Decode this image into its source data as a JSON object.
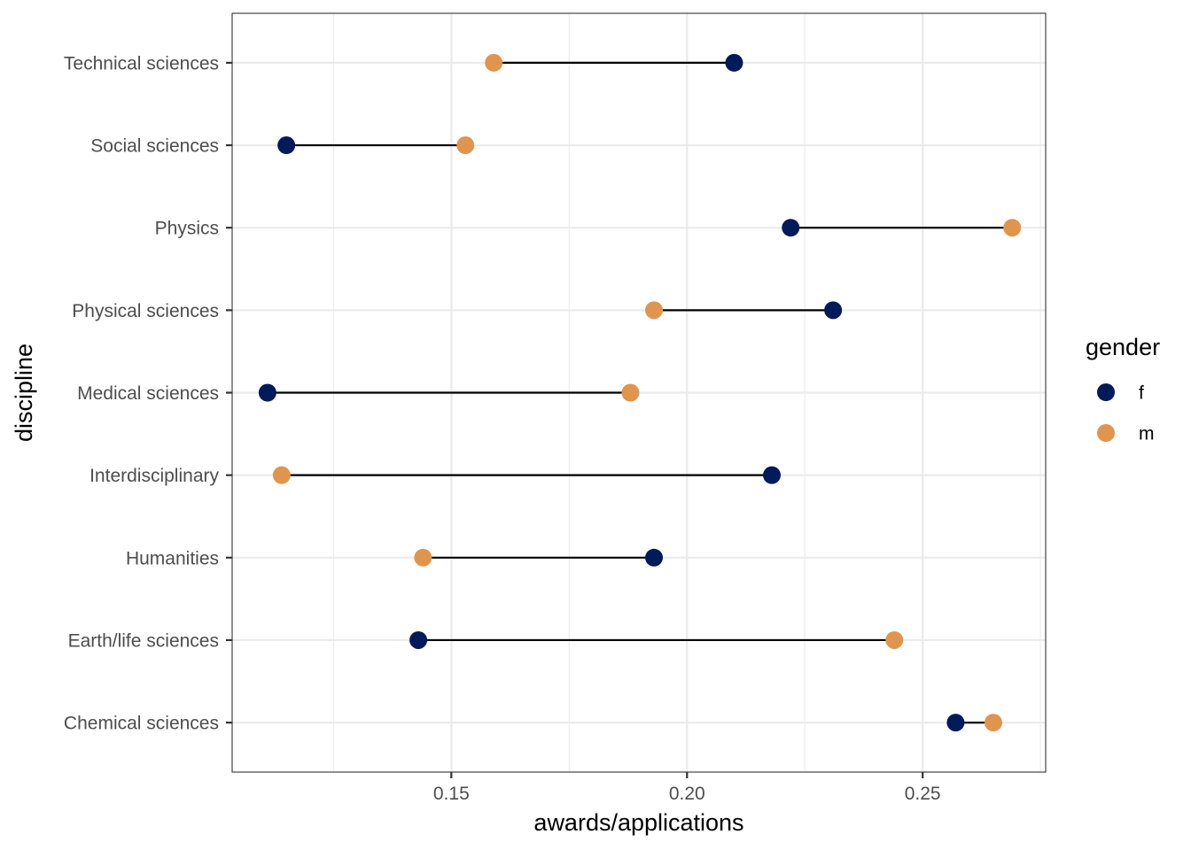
{
  "chart_data": {
    "type": "dumbbell",
    "xlabel": "awards/applications",
    "ylabel": "discipline",
    "xlim": [
      0.1035,
      0.2761
    ],
    "x_ticks": [
      0.15,
      0.2,
      0.25
    ],
    "x_tick_labels": [
      "0.15",
      "0.20",
      "0.25"
    ],
    "grid": true,
    "categories": [
      "Chemical sciences",
      "Earth/life sciences",
      "Humanities",
      "Interdisciplinary",
      "Medical sciences",
      "Physical sciences",
      "Physics",
      "Social sciences",
      "Technical sciences"
    ],
    "series": [
      {
        "name": "f",
        "color": "#001a5a",
        "values": [
          0.257,
          0.143,
          0.193,
          0.218,
          0.111,
          0.231,
          0.222,
          0.115,
          0.21
        ]
      },
      {
        "name": "m",
        "color": "#e0954f",
        "values": [
          0.265,
          0.244,
          0.144,
          0.114,
          0.188,
          0.193,
          0.269,
          0.153,
          0.159
        ]
      }
    ],
    "legend": {
      "title": "gender",
      "placement": "right"
    }
  }
}
